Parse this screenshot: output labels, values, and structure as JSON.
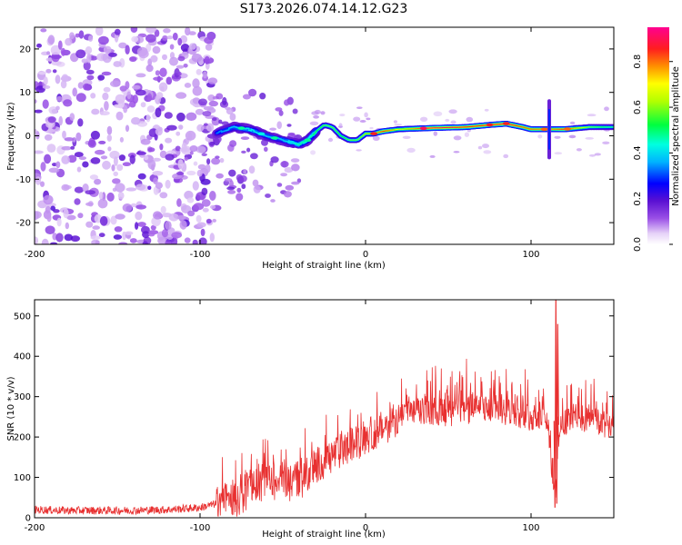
{
  "chart_data": [
    {
      "type": "heatmap",
      "title": "S173.2026.074.14.12.G23",
      "xlabel": "Height of straight line (km)",
      "ylabel": "Frequency (Hz)",
      "xlim": [
        -200,
        150
      ],
      "ylim": [
        -25,
        25
      ],
      "xticks": [
        -200,
        -100,
        0,
        100
      ],
      "xtick_labels": [
        "-200",
        "-100",
        "0",
        "100"
      ],
      "yticks": [
        20,
        10,
        0,
        -10,
        -20
      ],
      "ytick_labels": [
        "20",
        "10",
        "0",
        "-10",
        "-20"
      ],
      "colorbar": {
        "label": "Normalized spectral amplitude",
        "range": [
          0,
          0.95
        ],
        "ticks": [
          0.0,
          0.2,
          0.4,
          0.6,
          0.8
        ],
        "tick_labels": [
          "0.0",
          "0.2",
          "0.4",
          "0.6",
          "0.8"
        ],
        "colors": [
          "#ffffff",
          "#e0c8f6",
          "#9040e0",
          "#6010d0",
          "#0000ff",
          "#00ffff",
          "#00ff40",
          "#ffff00",
          "#ff8000",
          "#ff2020",
          "#ff0090"
        ]
      },
      "ridge": {
        "x": [
          -90,
          -80,
          -70,
          -60,
          -50,
          -40,
          -35,
          -30,
          -25,
          -20,
          -15,
          -10,
          -5,
          0,
          5,
          10,
          20,
          40,
          60,
          75,
          85,
          95,
          100,
          110,
          120,
          135,
          150
        ],
        "freq": [
          0.5,
          2,
          1.5,
          0,
          -1,
          -2,
          -1,
          1,
          2.5,
          2,
          0,
          -1,
          -1,
          0.5,
          0.5,
          1,
          1.5,
          1.8,
          2,
          2.5,
          2.8,
          2,
          1.5,
          1.5,
          1.5,
          2,
          2
        ],
        "amplitude": [
          0.35,
          0.4,
          0.45,
          0.4,
          0.4,
          0.5,
          0.45,
          0.55,
          0.6,
          0.6,
          0.55,
          0.6,
          0.6,
          0.7,
          0.75,
          0.9,
          0.7,
          0.95,
          0.9,
          0.9,
          0.95,
          0.85,
          0.85,
          0.8,
          0.9,
          0.6,
          0.5
        ]
      }
    },
    {
      "type": "line",
      "xlabel": "Height of straight line (km)",
      "ylabel": "SNR (10 * v/v)",
      "xlim": [
        -200,
        150
      ],
      "ylim": [
        0,
        540
      ],
      "xticks": [
        -200,
        -100,
        0,
        100
      ],
      "xtick_labels": [
        "-200",
        "-100",
        "0",
        "100"
      ],
      "yticks": [
        0,
        100,
        200,
        300,
        400,
        500
      ],
      "ytick_labels": [
        "0",
        "100",
        "200",
        "300",
        "400",
        "500"
      ],
      "color": "#e83030",
      "series": [
        {
          "name": "SNR",
          "x": [
            -200,
            -180,
            -160,
            -140,
            -120,
            -100,
            -90,
            -80,
            -75,
            -70,
            -60,
            -50,
            -40,
            -35,
            -30,
            -25,
            -20,
            -10,
            0,
            10,
            20,
            30,
            40,
            50,
            60,
            70,
            80,
            90,
            100,
            110,
            113,
            115,
            117,
            120,
            130,
            140,
            150
          ],
          "y": [
            20,
            18,
            18,
            18,
            20,
            25,
            35,
            45,
            60,
            80,
            90,
            100,
            95,
            110,
            130,
            140,
            155,
            175,
            200,
            220,
            250,
            260,
            265,
            260,
            265,
            270,
            265,
            260,
            250,
            245,
            90,
            60,
            230,
            240,
            245,
            235,
            230
          ]
        }
      ],
      "spike": {
        "x": 115,
        "peak": 540,
        "trough": 25
      }
    }
  ]
}
